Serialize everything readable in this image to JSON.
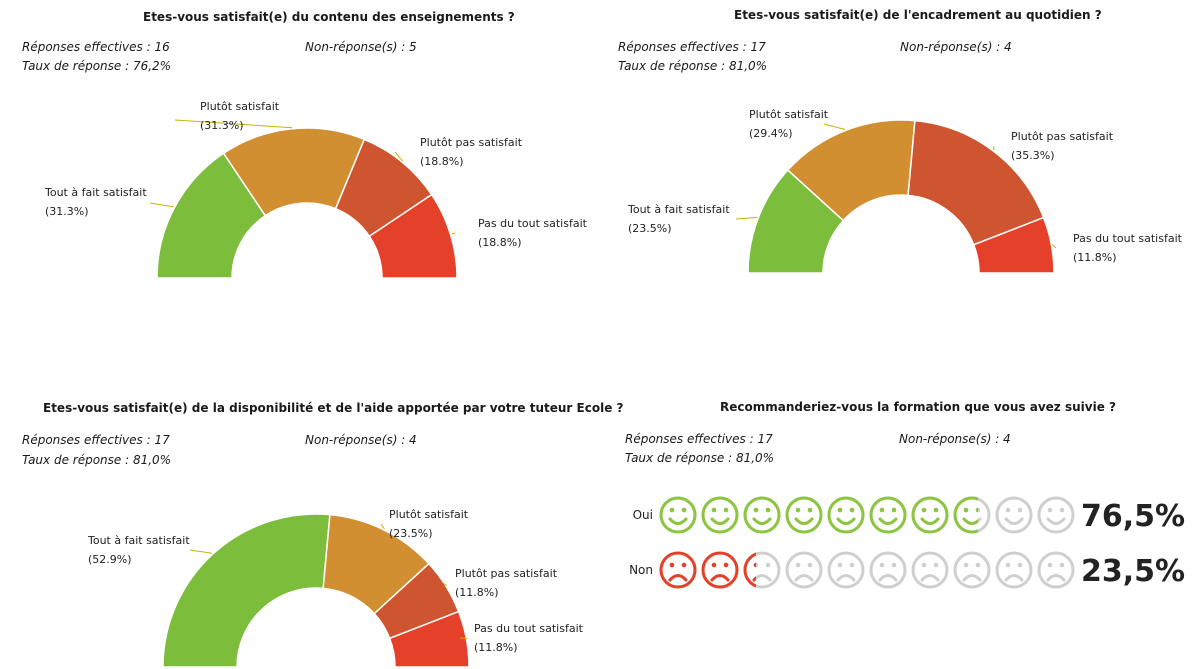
{
  "colors": {
    "tout_a_fait": "#7cbd3b",
    "plutot": "#d18f32",
    "plutot_pas": "#cf5430",
    "pas_du_tout": "#e5412a",
    "leader": "#c8b400",
    "oui": "#8cc63f",
    "non": "#e5412a",
    "empty": "#cfcfcf"
  },
  "panels": [
    {
      "title": "Etes-vous satisfait(e) du contenu des enseignements ?",
      "reponses": "Réponses effectives : 16",
      "non_reponses": "Non-réponse(s) : 5",
      "taux": "Taux de réponse : 76,2%"
    },
    {
      "title": "Etes-vous satisfait(e) de l'encadrement au quotidien ?",
      "reponses": "Réponses effectives : 17",
      "non_reponses": "Non-réponse(s) : 4",
      "taux": "Taux de réponse : 81,0%"
    },
    {
      "title": "Etes-vous satisfait(e) de la disponibilité et de l'aide apportée par votre tuteur Ecole ?",
      "reponses": "Réponses effectives : 17",
      "non_reponses": "Non-réponse(s) : 4",
      "taux": "Taux de réponse : 81,0%"
    },
    {
      "title": "Recommanderiez-vous la formation que vous avez suivie ?",
      "reponses": "Réponses effectives : 17",
      "non_reponses": "Non-réponse(s) : 4",
      "taux": "Taux de réponse : 81,0%"
    }
  ],
  "chart_data": [
    {
      "type": "pie",
      "variant": "half-donut",
      "title": "Etes-vous satisfait(e) du contenu des enseignements ?",
      "categories": [
        "Tout à fait satisfait",
        "Plutôt satisfait",
        "Plutôt pas satisfait",
        "Pas du tout satisfait"
      ],
      "values": [
        31.3,
        31.3,
        18.8,
        18.8
      ],
      "labels": [
        "(31.3%)",
        "(31.3%)",
        "(18.8%)",
        "(18.8%)"
      ]
    },
    {
      "type": "pie",
      "variant": "half-donut",
      "title": "Etes-vous satisfait(e) de l'encadrement au quotidien ?",
      "categories": [
        "Tout à fait satisfait",
        "Plutôt satisfait",
        "Plutôt pas satisfait",
        "Pas du tout satisfait"
      ],
      "values": [
        23.5,
        29.4,
        35.3,
        11.8
      ],
      "labels": [
        "(23.5%)",
        "(29.4%)",
        "(35.3%)",
        "(11.8%)"
      ]
    },
    {
      "type": "pie",
      "variant": "half-donut",
      "title": "Etes-vous satisfait(e) de la disponibilité et de l'aide apportée par votre tuteur Ecole ?",
      "categories": [
        "Tout à fait satisfait",
        "Plutôt satisfait",
        "Plutôt pas satisfait",
        "Pas du tout satisfait"
      ],
      "values": [
        52.9,
        23.5,
        11.8,
        11.8
      ],
      "labels": [
        "(52.9%)",
        "(23.5%)",
        "(11.8%)",
        "(11.8%)"
      ]
    },
    {
      "type": "bar",
      "variant": "pictogram",
      "title": "Recommanderiez-vous la formation que vous avez suivie ?",
      "categories": [
        "Oui",
        "Non"
      ],
      "values": [
        76.5,
        23.5
      ],
      "labels": [
        "76,5%",
        "23,5%"
      ]
    }
  ]
}
